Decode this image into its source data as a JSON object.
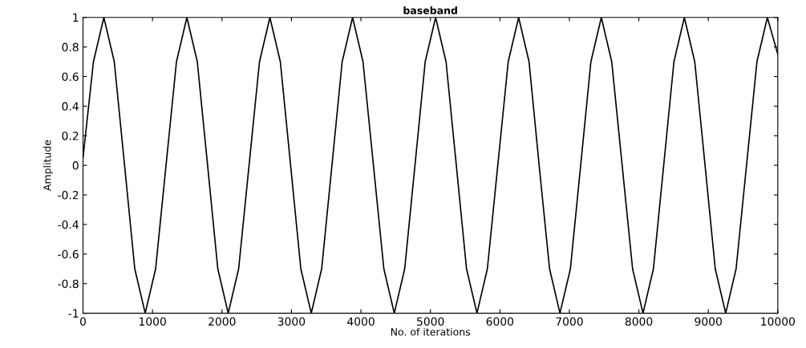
{
  "chart_data": {
    "type": "line",
    "title": "baseband",
    "xlabel": "No. of iterations",
    "ylabel": "Amplitude",
    "series": [
      {
        "color": "#000000",
        "x": [
          0,
          150,
          300,
          450,
          598,
          745,
          895,
          1045,
          1195,
          1345,
          1495,
          1645,
          1793,
          1940,
          2090,
          2240,
          2390,
          2540,
          2690,
          2840,
          2988,
          3135,
          3285,
          3435,
          3583,
          3730,
          3880,
          4030,
          4180,
          4330,
          4480,
          4630,
          4778,
          4925,
          5075,
          5225,
          5373,
          5520,
          5670,
          5820,
          5970,
          6120,
          6270,
          6420,
          6565,
          6715,
          6865,
          7015,
          7163,
          7310,
          7460,
          7610,
          7760,
          7910,
          8060,
          8210,
          8358,
          8505,
          8655,
          8805,
          8953,
          9100,
          9250,
          9400,
          9550,
          9700,
          9850,
          10000
        ],
        "values": [
          0.05,
          0.7,
          1,
          0.7,
          0,
          -0.7,
          -1,
          -0.7,
          0,
          0.7,
          1,
          0.7,
          0,
          -0.7,
          -1,
          -0.7,
          0,
          0.7,
          1,
          0.7,
          0,
          -0.7,
          -1,
          -0.7,
          0,
          0.7,
          1,
          0.7,
          0,
          -0.7,
          -1,
          -0.7,
          0,
          0.7,
          1,
          0.7,
          0,
          -0.7,
          -1,
          -0.7,
          0,
          0.7,
          1,
          0.7,
          0,
          -0.7,
          -1,
          -0.7,
          0,
          0.7,
          1,
          0.7,
          0,
          -0.7,
          -1,
          -0.7,
          0,
          0.7,
          1,
          0.7,
          0,
          -0.7,
          -1,
          -0.7,
          0,
          0.7,
          1,
          0.75
        ]
      }
    ],
    "xlim": [
      0,
      10000
    ],
    "xticks": [
      0,
      1000,
      2000,
      3000,
      4000,
      5000,
      6000,
      7000,
      8000,
      9000,
      10000
    ],
    "ylim": [
      -1,
      1
    ],
    "yticks": [
      -1,
      -0.8,
      -0.6,
      -0.4,
      -0.2,
      0,
      0.2,
      0.4,
      0.6,
      0.8,
      1
    ],
    "grid": false,
    "legend": false,
    "marker": "none",
    "line_style": "solid"
  }
}
